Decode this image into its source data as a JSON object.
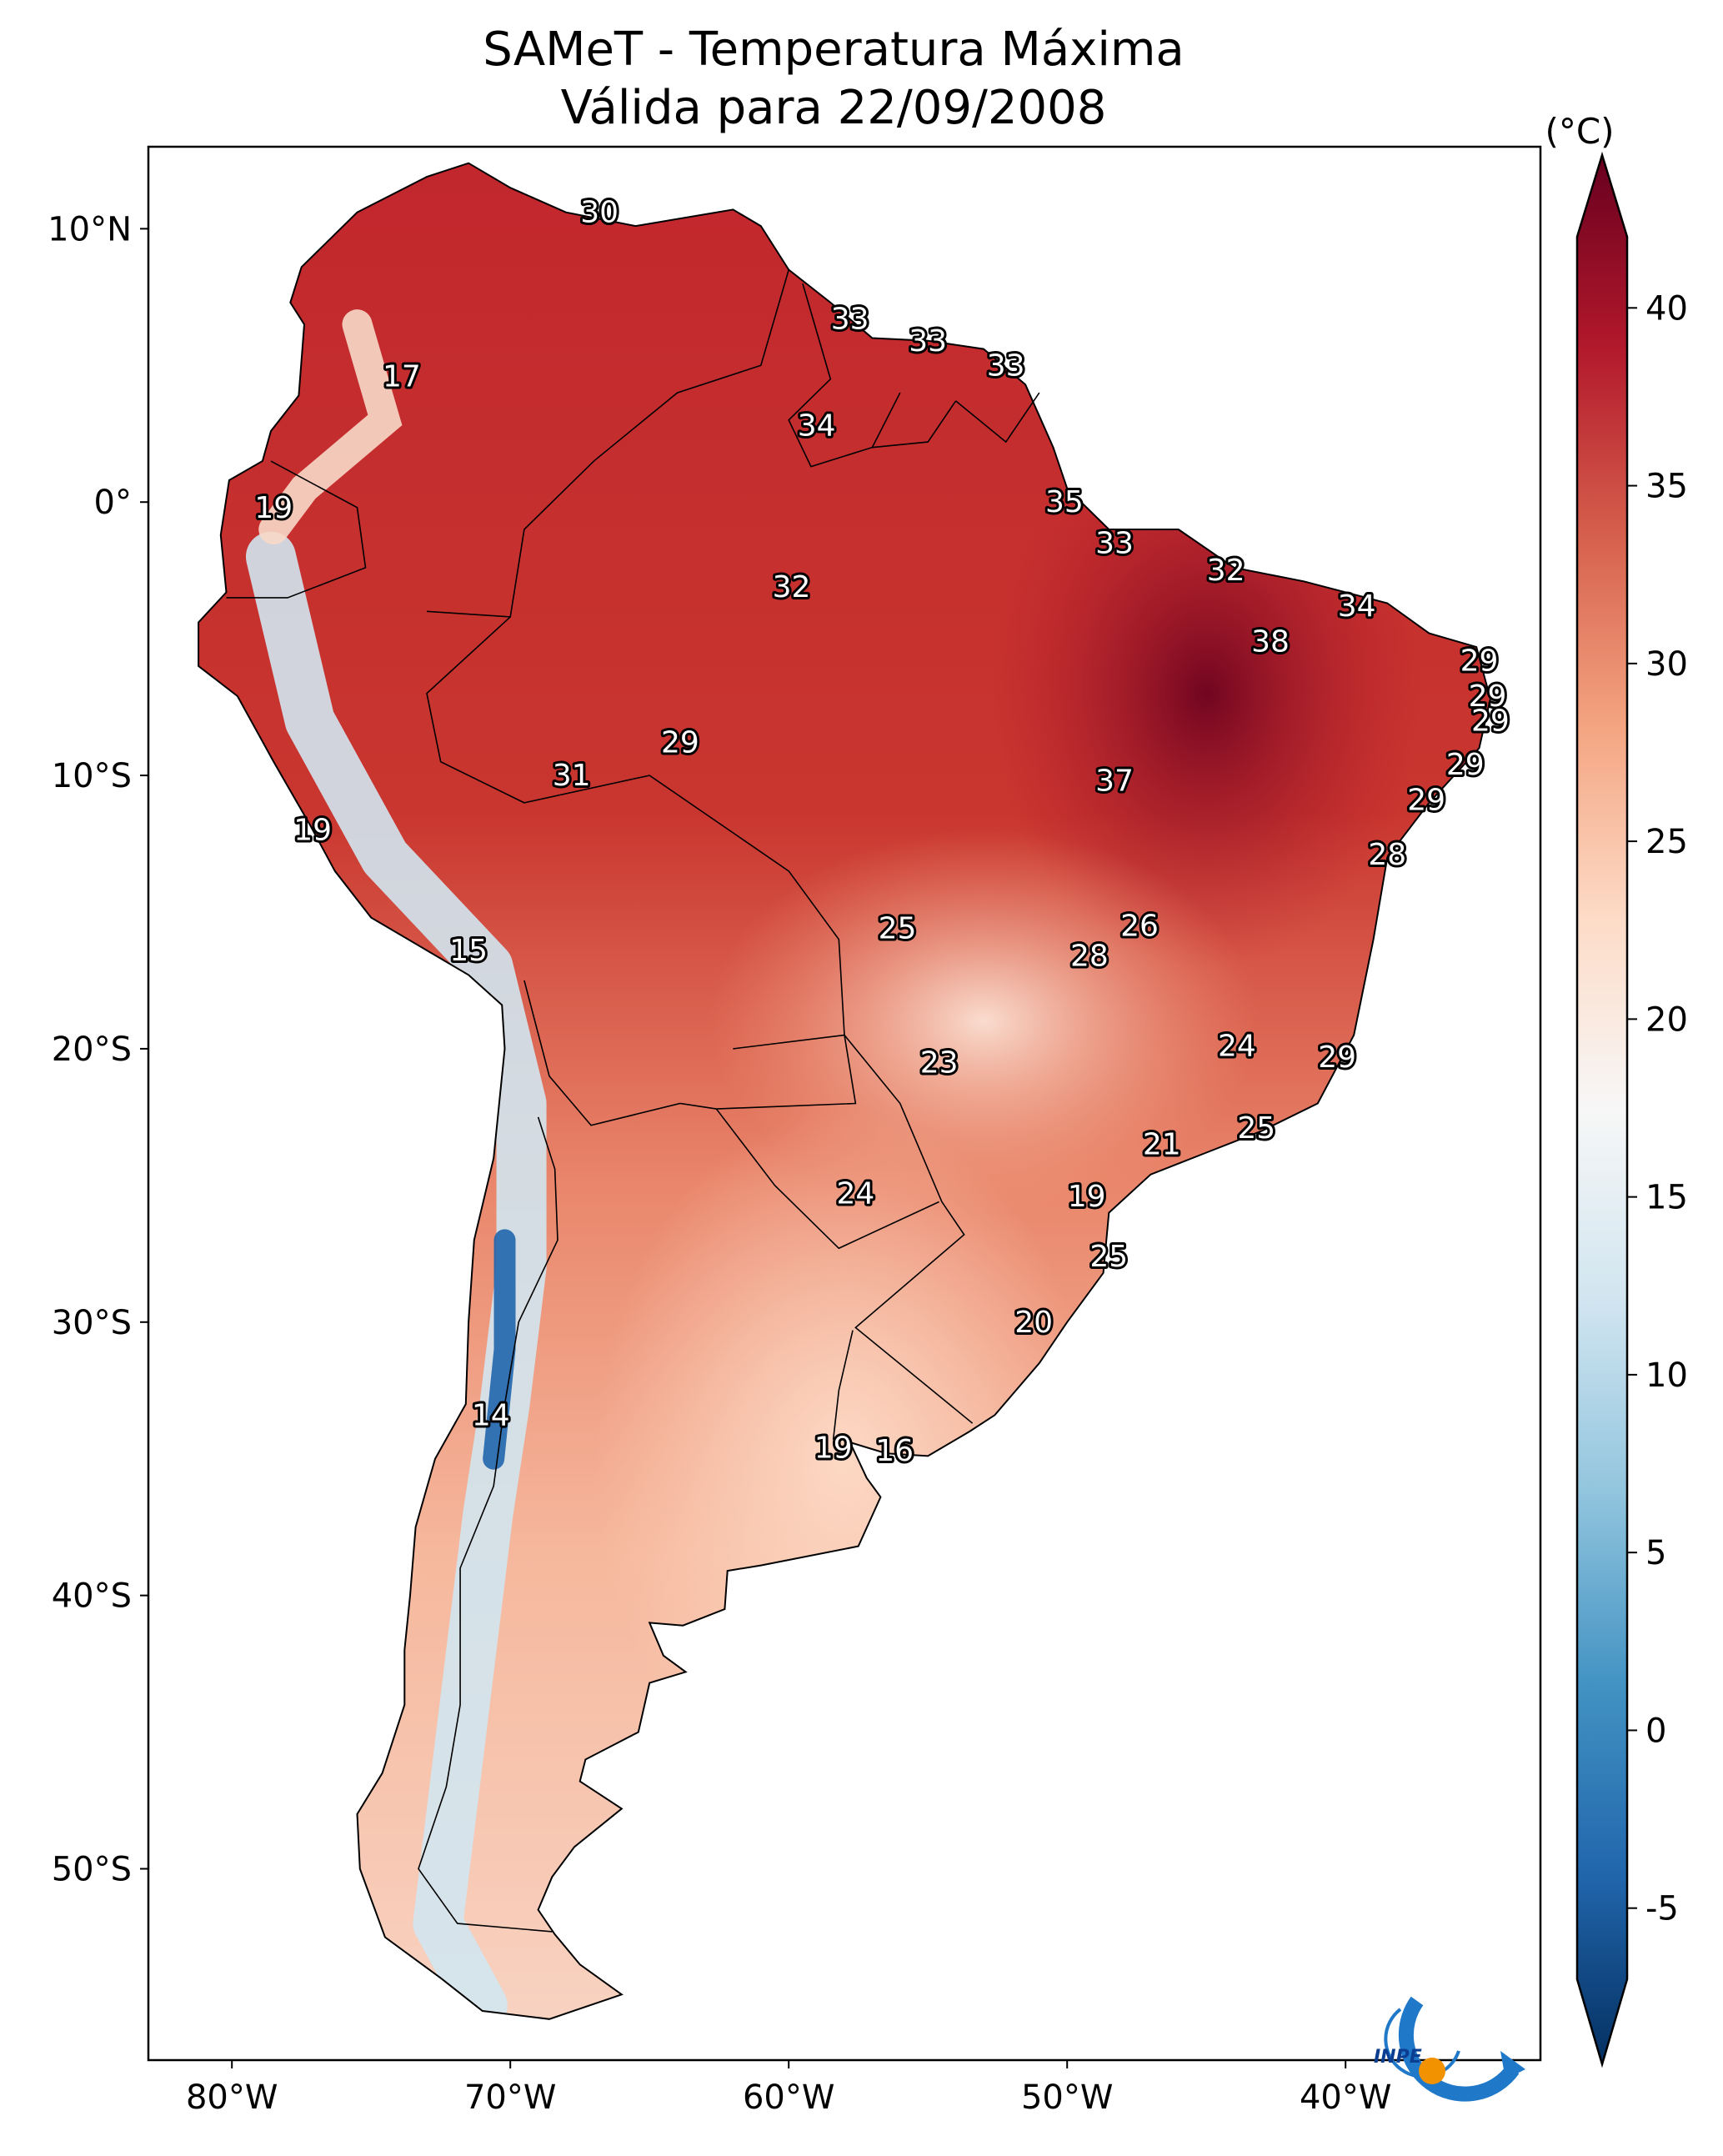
{
  "title": {
    "line1": "SAMeT - Temperatura Máxima",
    "line2": "Válida para 22/09/2008"
  },
  "map": {
    "lon_range": [
      -83,
      -33
    ],
    "lat_range": [
      -57,
      13
    ],
    "lon_ticks": [
      {
        "value": -80,
        "label": "80°W"
      },
      {
        "value": -70,
        "label": "70°W"
      },
      {
        "value": -60,
        "label": "60°W"
      },
      {
        "value": -50,
        "label": "50°W"
      },
      {
        "value": -40,
        "label": "40°W"
      }
    ],
    "lat_ticks": [
      {
        "value": 10,
        "label": "10°N"
      },
      {
        "value": 0,
        "label": "0°"
      },
      {
        "value": -10,
        "label": "10°S"
      },
      {
        "value": -20,
        "label": "20°S"
      },
      {
        "value": -30,
        "label": "30°S"
      },
      {
        "value": -40,
        "label": "40°S"
      },
      {
        "value": -50,
        "label": "50°S"
      }
    ],
    "station_values": [
      {
        "lon": -66.8,
        "lat": 10.6,
        "value": "30"
      },
      {
        "lon": -57.8,
        "lat": 6.7,
        "value": "33"
      },
      {
        "lon": -55.0,
        "lat": 5.9,
        "value": "33"
      },
      {
        "lon": -52.2,
        "lat": 5.0,
        "value": "33"
      },
      {
        "lon": -59.0,
        "lat": 2.8,
        "value": "34"
      },
      {
        "lon": -73.9,
        "lat": 4.6,
        "value": "17"
      },
      {
        "lon": -78.5,
        "lat": -0.2,
        "value": "19"
      },
      {
        "lon": -50.1,
        "lat": 0.0,
        "value": "35"
      },
      {
        "lon": -48.3,
        "lat": -1.5,
        "value": "33"
      },
      {
        "lon": -44.3,
        "lat": -2.5,
        "value": "32"
      },
      {
        "lon": -59.9,
        "lat": -3.1,
        "value": "32"
      },
      {
        "lon": -39.6,
        "lat": -3.8,
        "value": "34"
      },
      {
        "lon": -42.7,
        "lat": -5.1,
        "value": "38"
      },
      {
        "lon": -35.2,
        "lat": -5.8,
        "value": "29"
      },
      {
        "lon": -34.9,
        "lat": -7.1,
        "value": "29"
      },
      {
        "lon": -34.8,
        "lat": -8.0,
        "value": "29"
      },
      {
        "lon": -63.9,
        "lat": -8.8,
        "value": "29"
      },
      {
        "lon": -67.8,
        "lat": -10.0,
        "value": "31"
      },
      {
        "lon": -48.3,
        "lat": -10.2,
        "value": "37"
      },
      {
        "lon": -35.7,
        "lat": -9.6,
        "value": "29"
      },
      {
        "lon": -37.1,
        "lat": -10.9,
        "value": "29"
      },
      {
        "lon": -38.5,
        "lat": -12.9,
        "value": "28"
      },
      {
        "lon": -77.1,
        "lat": -12.0,
        "value": "19"
      },
      {
        "lon": -56.1,
        "lat": -15.6,
        "value": "25"
      },
      {
        "lon": -47.4,
        "lat": -15.5,
        "value": "26"
      },
      {
        "lon": -49.2,
        "lat": -16.6,
        "value": "28"
      },
      {
        "lon": -71.5,
        "lat": -16.4,
        "value": "15"
      },
      {
        "lon": -43.9,
        "lat": -19.9,
        "value": "24"
      },
      {
        "lon": -40.3,
        "lat": -20.3,
        "value": "29"
      },
      {
        "lon": -54.6,
        "lat": -20.5,
        "value": "23"
      },
      {
        "lon": -46.6,
        "lat": -23.5,
        "value": "21"
      },
      {
        "lon": -43.2,
        "lat": -22.9,
        "value": "25"
      },
      {
        "lon": -57.6,
        "lat": -25.3,
        "value": "24"
      },
      {
        "lon": -49.3,
        "lat": -25.4,
        "value": "19"
      },
      {
        "lon": -48.5,
        "lat": -27.6,
        "value": "25"
      },
      {
        "lon": -51.2,
        "lat": -30.0,
        "value": "20"
      },
      {
        "lon": -70.7,
        "lat": -33.4,
        "value": "14"
      },
      {
        "lon": -58.4,
        "lat": -34.6,
        "value": "19"
      },
      {
        "lon": -56.2,
        "lat": -34.7,
        "value": "16"
      }
    ]
  },
  "colorbar": {
    "unit": "(°C)",
    "min": -7,
    "max": 42,
    "ticks": [
      {
        "value": 40,
        "label": "40"
      },
      {
        "value": 35,
        "label": "35"
      },
      {
        "value": 30,
        "label": "30"
      },
      {
        "value": 25,
        "label": "25"
      },
      {
        "value": 20,
        "label": "20"
      },
      {
        "value": 15,
        "label": "15"
      },
      {
        "value": 10,
        "label": "10"
      },
      {
        "value": 5,
        "label": "5"
      },
      {
        "value": 0,
        "label": "0"
      },
      {
        "value": -5,
        "label": "-5"
      }
    ],
    "colors": [
      "#053061",
      "#2166ac",
      "#4393c3",
      "#92c5de",
      "#d1e5f0",
      "#f7f7f7",
      "#fddbc7",
      "#f4a582",
      "#d6604d",
      "#b2182b",
      "#67001f"
    ]
  },
  "logo": {
    "text": "INPE",
    "colors": {
      "blue": "#1f78c8",
      "orange": "#f39200"
    }
  }
}
